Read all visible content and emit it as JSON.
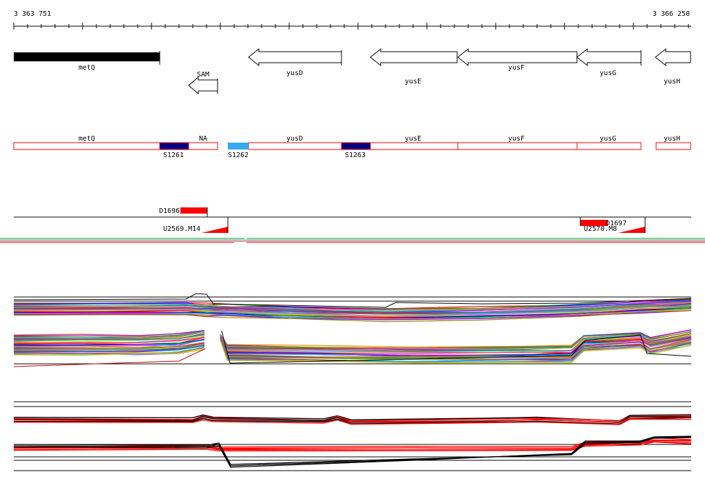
{
  "ruler": {
    "start_label": "3 363 751",
    "end_label": "3 366 250"
  },
  "genes": [
    {
      "label": "metQ",
      "kind": "bar"
    },
    {
      "label": "SAM",
      "kind": "arrow"
    },
    {
      "label": "yusD",
      "kind": "arrow"
    },
    {
      "label": "yusE",
      "kind": "arrow"
    },
    {
      "label": "yusF",
      "kind": "arrow"
    },
    {
      "label": "yusG",
      "kind": "arrow"
    },
    {
      "label": "yusH",
      "kind": "arrow"
    }
  ],
  "segments": [
    {
      "label": "metQ"
    },
    {
      "label": "NA"
    },
    {
      "label": "yusD"
    },
    {
      "label": "yusE"
    },
    {
      "label": "yusF"
    },
    {
      "label": "yusG"
    },
    {
      "label": "yusH"
    }
  ],
  "sites": [
    {
      "label": "S1261",
      "color": "#000080"
    },
    {
      "label": "S1262",
      "color": "#33aaee"
    },
    {
      "label": "S1263",
      "color": "#000080"
    }
  ],
  "features": [
    {
      "label": "D1696"
    },
    {
      "label": "U2569.M14"
    },
    {
      "label": "D1697"
    },
    {
      "label": "U2570.M8"
    }
  ],
  "colors": {
    "segment_border": "#ff0000",
    "feature_red": "#ff0000",
    "profile_red": "#ff0000",
    "profile_black": "#000000"
  }
}
